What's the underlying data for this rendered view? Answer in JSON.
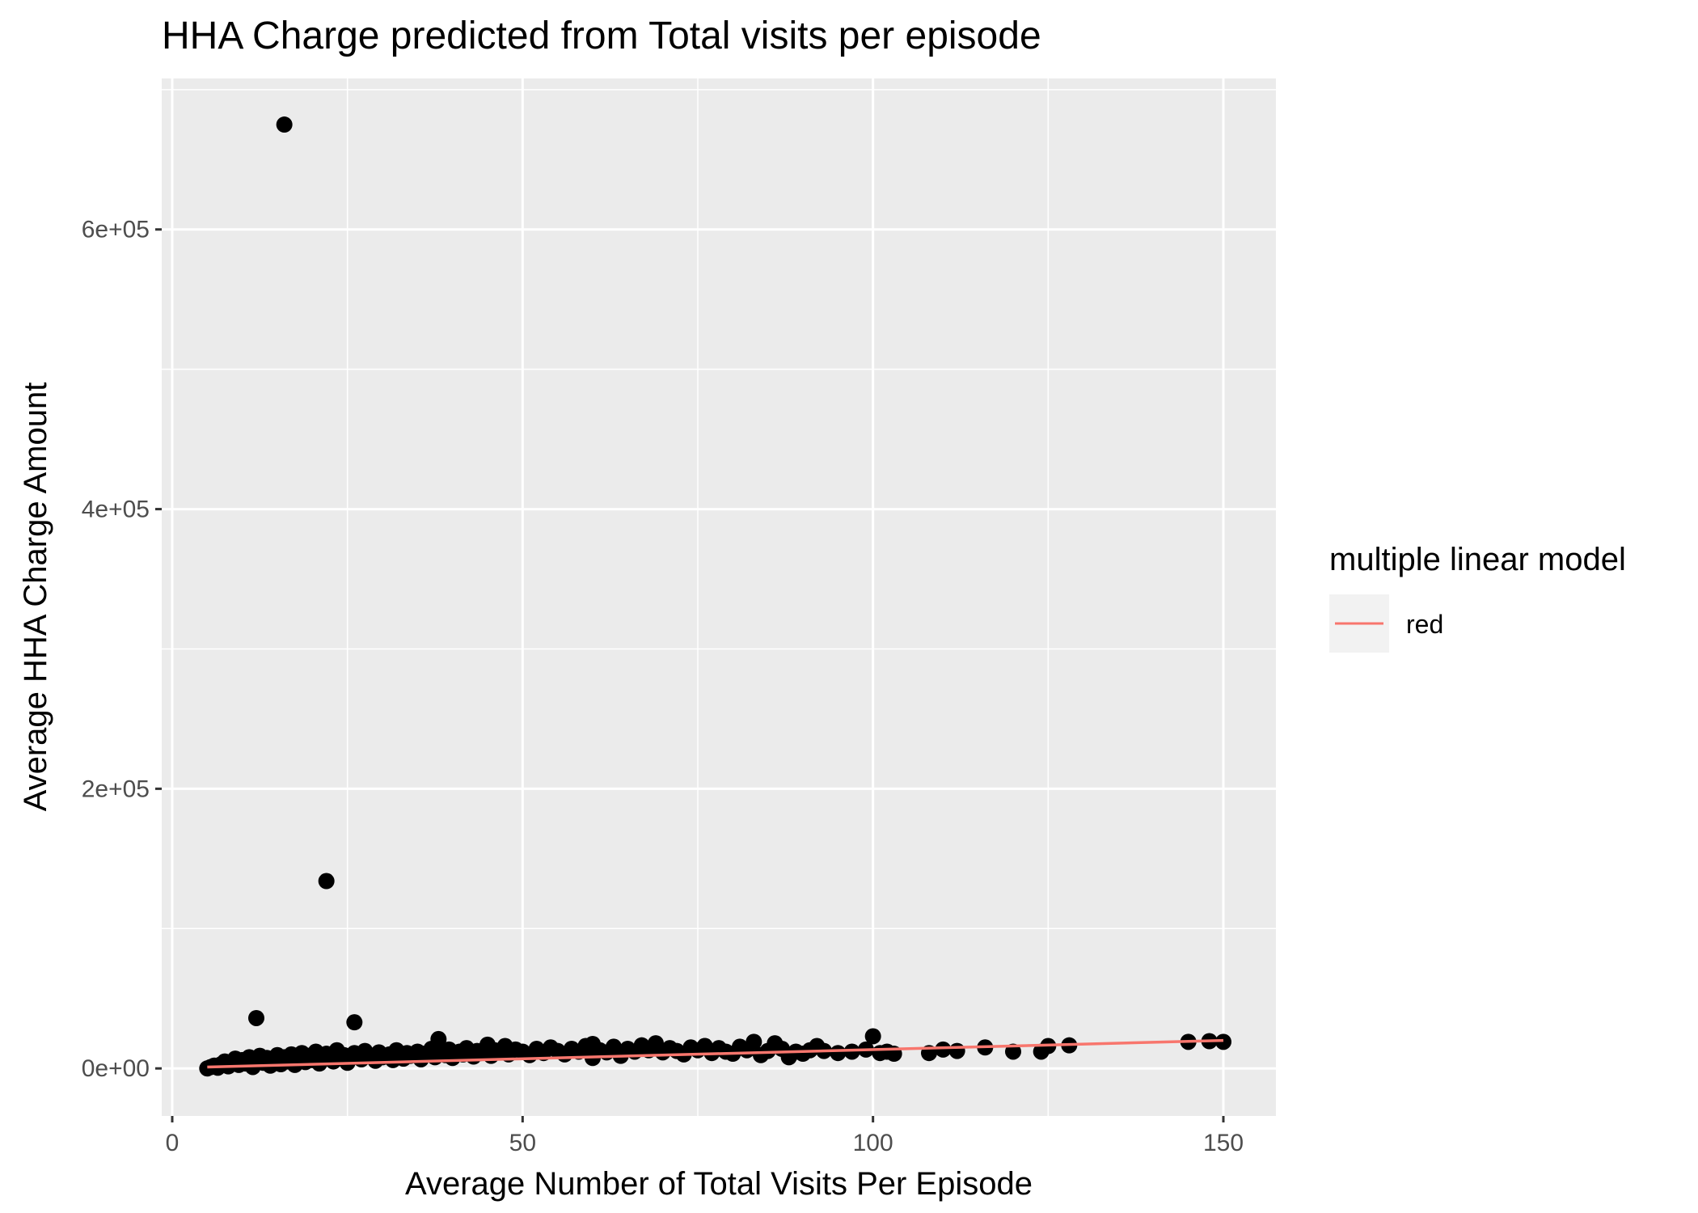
{
  "chart_data": {
    "type": "scatter",
    "title": "HHA Charge predicted from Total visits per episode",
    "xlabel": "Average Number of Total Visits Per Episode",
    "ylabel": "Average HHA Charge Amount",
    "xlim": [
      -1.5,
      157.5
    ],
    "ylim": [
      -34000,
      708000
    ],
    "x_ticks": [
      0,
      50,
      100,
      150
    ],
    "x_tick_labels": [
      "0",
      "50",
      "100",
      "150"
    ],
    "y_ticks": [
      0,
      200000,
      400000,
      600000
    ],
    "y_tick_labels": [
      "0e+00",
      "2e+05",
      "4e+05",
      "6e+05"
    ],
    "grid": true,
    "background": "#ebebeb",
    "legend": {
      "title": "multiple linear model",
      "position": "right",
      "items": [
        {
          "label": "red",
          "color": "#f8766d"
        }
      ]
    },
    "series": [
      {
        "kind": "points",
        "color": "#000000",
        "points": [
          [
            5,
            0
          ],
          [
            5.5,
            1000
          ],
          [
            6,
            2000
          ],
          [
            6.5,
            500
          ],
          [
            7,
            3000
          ],
          [
            7.5,
            5000
          ],
          [
            8,
            1500
          ],
          [
            8.5,
            4000
          ],
          [
            9,
            7000
          ],
          [
            9.5,
            2500
          ],
          [
            10,
            6000
          ],
          [
            10.5,
            3500
          ],
          [
            11,
            8000
          ],
          [
            11.5,
            1000
          ],
          [
            12,
            5500
          ],
          [
            12.5,
            9000
          ],
          [
            13,
            4000
          ],
          [
            13.5,
            7500
          ],
          [
            14,
            2000
          ],
          [
            14.5,
            6500
          ],
          [
            15,
            9500
          ],
          [
            15.5,
            3000
          ],
          [
            16,
            8000
          ],
          [
            16.5,
            5000
          ],
          [
            17,
            10000
          ],
          [
            17.5,
            2500
          ],
          [
            18,
            7000
          ],
          [
            18.5,
            11000
          ],
          [
            19,
            4500
          ],
          [
            19.5,
            9000
          ],
          [
            20,
            6000
          ],
          [
            20.5,
            12000
          ],
          [
            21,
            3500
          ],
          [
            21.5,
            8500
          ],
          [
            22,
            10500
          ],
          [
            23,
            5000
          ],
          [
            23.5,
            13000
          ],
          [
            24,
            7500
          ],
          [
            24.5,
            9500
          ],
          [
            25,
            4000
          ],
          [
            26,
            11000
          ],
          [
            26.5,
            8000
          ],
          [
            27,
            6500
          ],
          [
            27.5,
            12500
          ],
          [
            28,
            9000
          ],
          [
            29,
            5500
          ],
          [
            29.5,
            11500
          ],
          [
            30,
            8000
          ],
          [
            31,
            10000
          ],
          [
            31.5,
            6000
          ],
          [
            32,
            13000
          ],
          [
            33,
            7000
          ],
          [
            33.5,
            11000
          ],
          [
            34,
            9000
          ],
          [
            35,
            12000
          ],
          [
            35.5,
            6500
          ],
          [
            36,
            10500
          ],
          [
            37,
            14000
          ],
          [
            37.5,
            8000
          ],
          [
            38,
            11500
          ],
          [
            39,
            9500
          ],
          [
            39.5,
            13500
          ],
          [
            40,
            7500
          ],
          [
            41,
            12000
          ],
          [
            41.5,
            10000
          ],
          [
            42,
            14500
          ],
          [
            43,
            8500
          ],
          [
            43.5,
            12500
          ],
          [
            44,
            11000
          ],
          [
            45,
            15000
          ],
          [
            45.5,
            9000
          ],
          [
            46,
            13000
          ],
          [
            47,
            11500
          ],
          [
            47.5,
            16000
          ],
          [
            48,
            10000
          ],
          [
            49,
            13500
          ],
          [
            50,
            12000
          ],
          [
            51,
            9500
          ],
          [
            52,
            14000
          ],
          [
            53,
            11000
          ],
          [
            54,
            15000
          ],
          [
            55,
            12500
          ],
          [
            56,
            10000
          ],
          [
            57,
            14000
          ],
          [
            58,
            12000
          ],
          [
            59,
            16000
          ],
          [
            60,
            7500
          ],
          [
            61,
            13000
          ],
          [
            62,
            11500
          ],
          [
            63,
            15500
          ],
          [
            64,
            9000
          ],
          [
            65,
            14000
          ],
          [
            66,
            12000
          ],
          [
            67,
            16500
          ],
          [
            68,
            13000
          ],
          [
            69,
            18000
          ],
          [
            70,
            11500
          ],
          [
            71,
            14500
          ],
          [
            72,
            12500
          ],
          [
            73,
            10000
          ],
          [
            74,
            15000
          ],
          [
            75,
            13000
          ],
          [
            76,
            16000
          ],
          [
            77,
            11000
          ],
          [
            78,
            14500
          ],
          [
            79,
            12000
          ],
          [
            80,
            10500
          ],
          [
            81,
            15500
          ],
          [
            82,
            13000
          ],
          [
            83,
            19000
          ],
          [
            84,
            9500
          ],
          [
            85,
            12500
          ],
          [
            86,
            18000
          ],
          [
            87,
            14000
          ],
          [
            88,
            8000
          ],
          [
            89,
            12000
          ],
          [
            90,
            10500
          ],
          [
            91,
            13000
          ],
          [
            92,
            16000
          ],
          [
            93,
            12500
          ],
          [
            95,
            11000
          ],
          [
            97,
            12000
          ],
          [
            99,
            13500
          ],
          [
            100,
            23000
          ],
          [
            101,
            11000
          ],
          [
            102,
            12000
          ],
          [
            103,
            10500
          ],
          [
            108,
            11000
          ],
          [
            110,
            13500
          ],
          [
            112,
            12500
          ],
          [
            116,
            15000
          ],
          [
            120,
            12000
          ],
          [
            124,
            12000
          ],
          [
            125,
            16000
          ],
          [
            128,
            16500
          ],
          [
            145,
            19000
          ],
          [
            148,
            19500
          ],
          [
            150,
            19000
          ],
          [
            12,
            36000
          ],
          [
            26,
            33000
          ],
          [
            16,
            675000
          ],
          [
            22,
            134000
          ],
          [
            38,
            21000
          ],
          [
            45,
            17000
          ],
          [
            60,
            17500
          ],
          [
            76,
            16000
          ]
        ]
      },
      {
        "kind": "line",
        "name": "red",
        "color": "#f8766d",
        "x": [
          5,
          150
        ],
        "y": [
          1000,
          20000
        ]
      }
    ]
  }
}
